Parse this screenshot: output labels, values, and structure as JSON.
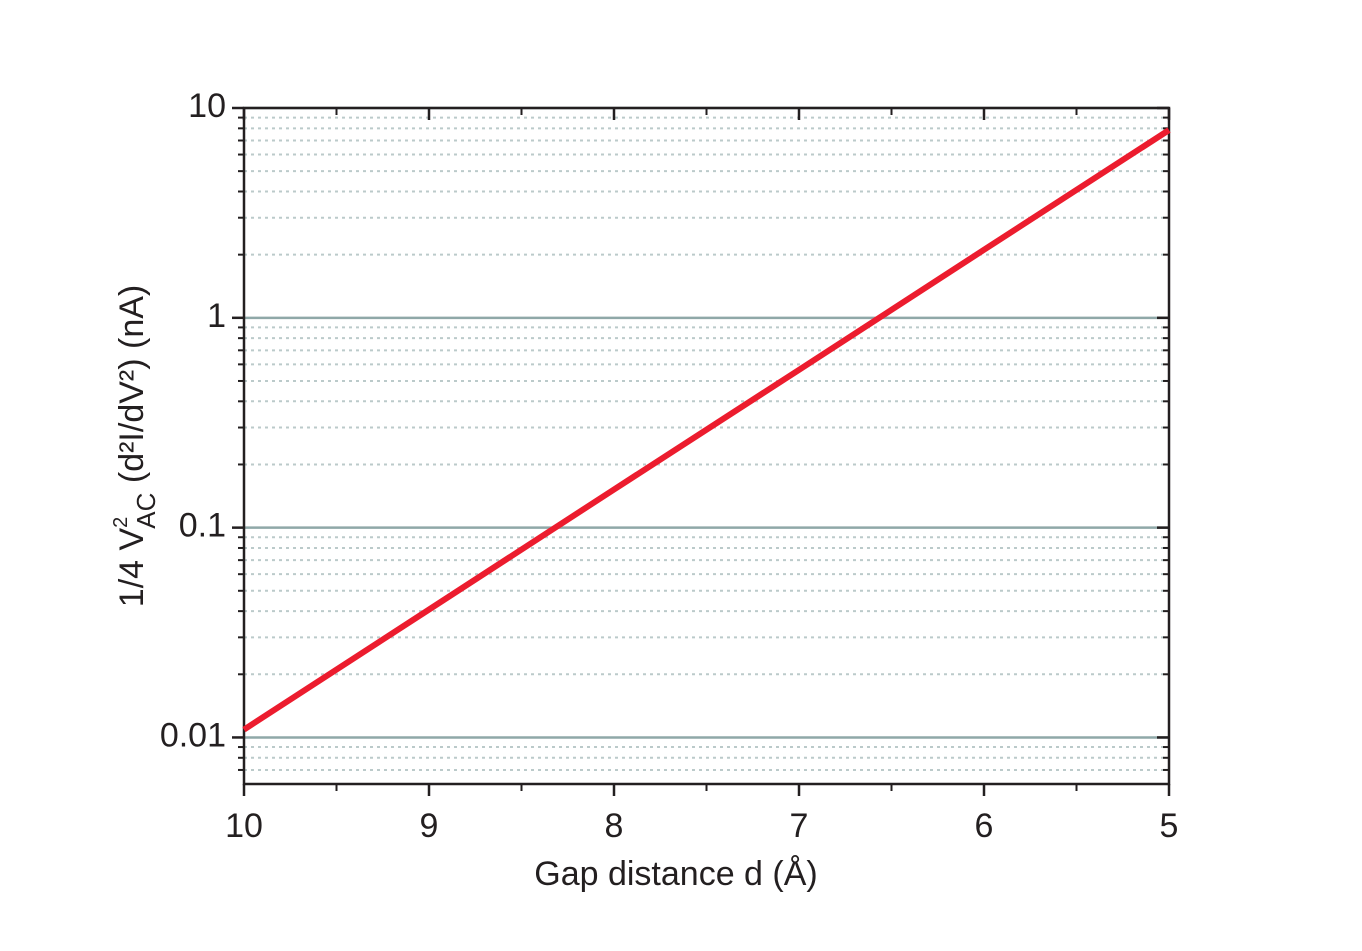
{
  "chart_data": {
    "type": "line",
    "xlabel": "Gap distance d (Å)",
    "ylabel": "1/4 V",
    "ylabel_sup": "2",
    "ylabel_sub": "AC",
    "ylabel_rest": " (d²I/dV²)  (nA)",
    "x": [
      10,
      9,
      8,
      7,
      6,
      5
    ],
    "series": [
      {
        "name": "",
        "color": "#ec1c2e",
        "values": [
          0.0109,
          0.0407,
          0.152,
          0.565,
          2.11,
          7.85
        ]
      }
    ],
    "xlim": [
      10,
      5
    ],
    "xticks": [
      10,
      9,
      8,
      7,
      6,
      5
    ],
    "xminor": [
      9.5,
      8.5,
      7.5,
      6.5,
      5.5
    ],
    "ylim": [
      0.006,
      10
    ],
    "ylog": true,
    "yticks": [
      0.01,
      0.1,
      1,
      10
    ],
    "yminor": [
      0.007,
      0.008,
      0.009,
      0.02,
      0.03,
      0.04,
      0.05,
      0.06,
      0.07,
      0.08,
      0.09,
      0.2,
      0.3,
      0.4,
      0.5,
      0.6,
      0.7,
      0.8,
      0.9,
      2,
      3,
      4,
      5,
      6,
      7,
      8,
      9
    ],
    "grid": true,
    "grid_color": "#8fa8a8"
  }
}
